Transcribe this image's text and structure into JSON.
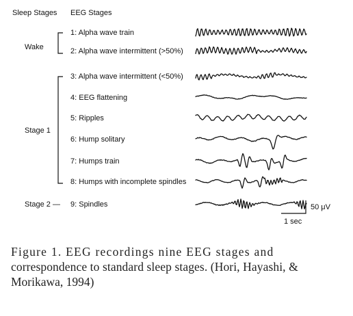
{
  "figure": {
    "headers": {
      "sleep_stages": "Sleep Stages",
      "eeg_stages": "EEG Stages"
    },
    "sleep_stage_labels": {
      "wake": "Wake",
      "stage1": "Stage 1",
      "stage2": "Stage 2 —"
    },
    "eeg_stages": [
      {
        "label": "1: Alpha wave train",
        "pattern": "alpha-train"
      },
      {
        "label": "2: Alpha wave intermittent (>50%)",
        "pattern": "alpha-intermittent-high"
      },
      {
        "label": "3: Alpha wave intermittent (<50%)",
        "pattern": "alpha-intermittent-low"
      },
      {
        "label": "4: EEG flattening",
        "pattern": "flat"
      },
      {
        "label": "5: Ripples",
        "pattern": "ripples"
      },
      {
        "label": "6: Hump solitary",
        "pattern": "hump-solitary"
      },
      {
        "label": "7: Humps train",
        "pattern": "humps-train"
      },
      {
        "label": "8: Humps with incomplete spindles",
        "pattern": "humps-incomplete-spindles"
      },
      {
        "label": "9: Spindles",
        "pattern": "spindles"
      }
    ],
    "scale": {
      "amplitude": "50 μV",
      "time": "1 sec"
    }
  },
  "caption": {
    "line1": "Figure 1. EEG recordings nine EEG stages and",
    "line2": "correspondence to standard sleep stages. (Hori, Hayashi, &",
    "line3": "Morikawa, 1994)"
  }
}
